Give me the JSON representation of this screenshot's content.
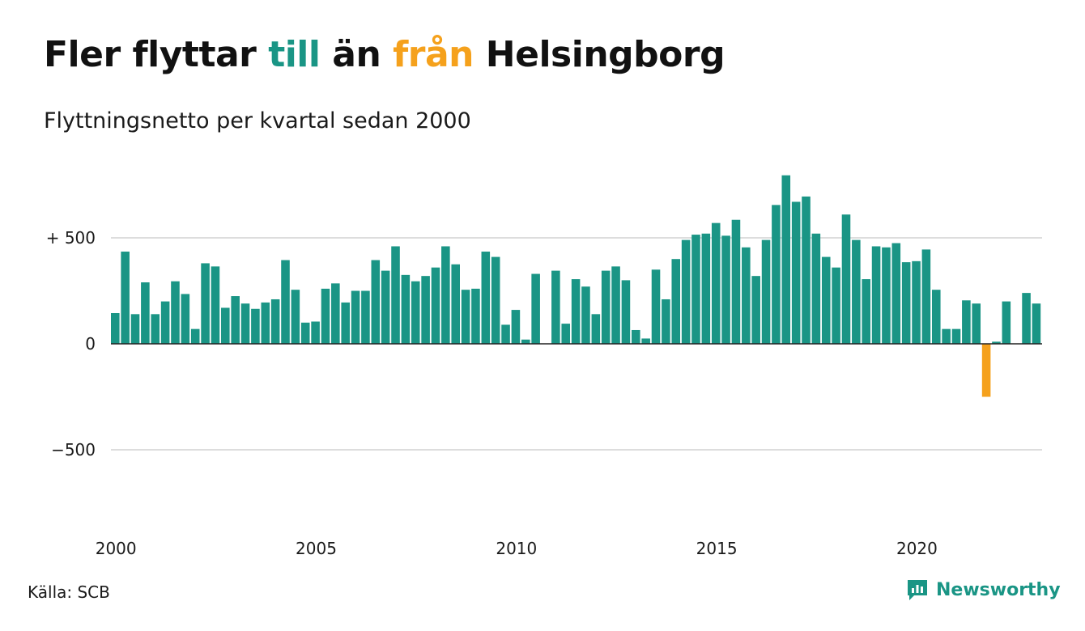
{
  "title": {
    "part1": "Fler flyttar ",
    "part2": "till",
    "part3": " än ",
    "part4": "från",
    "part5": " Helsingborg"
  },
  "subtitle": "Flyttningsnetto per kvartal sedan 2000",
  "source": "Källa: SCB",
  "brand": "Newsworthy",
  "colors": {
    "positive": "#1a9585",
    "negative": "#f5a11c",
    "grid": "#dddddd",
    "zero_line": "#222222"
  },
  "chart_data": {
    "type": "bar",
    "title": "Fler flyttar till än från Helsingborg",
    "subtitle": "Flyttningsnetto per kvartal sedan 2000",
    "xlabel": "",
    "ylabel": "",
    "ylim": [
      -850,
      850
    ],
    "grid": true,
    "y_ticks": [
      {
        "value": 500,
        "label": "+ 500"
      },
      {
        "value": 0,
        "label": "0"
      },
      {
        "value": -500,
        "label": "−500"
      }
    ],
    "x_ticks": [
      {
        "year": 2000,
        "label": "2000"
      },
      {
        "year": 2005,
        "label": "2005"
      },
      {
        "year": 2010,
        "label": "2010"
      },
      {
        "year": 2015,
        "label": "2015"
      },
      {
        "year": 2020,
        "label": "2020"
      }
    ],
    "start_year": 2000,
    "start_quarter": 1,
    "values": [
      145,
      435,
      140,
      290,
      140,
      200,
      295,
      235,
      70,
      380,
      365,
      170,
      225,
      190,
      165,
      195,
      210,
      395,
      255,
      100,
      105,
      260,
      285,
      195,
      250,
      250,
      395,
      345,
      460,
      325,
      295,
      320,
      360,
      460,
      375,
      255,
      260,
      435,
      410,
      90,
      160,
      20,
      330,
      0,
      345,
      95,
      305,
      270,
      140,
      345,
      365,
      300,
      65,
      25,
      350,
      210,
      400,
      490,
      515,
      520,
      570,
      510,
      585,
      455,
      320,
      490,
      655,
      795,
      670,
      695,
      520,
      410,
      360,
      610,
      490,
      305,
      460,
      455,
      475,
      385,
      390,
      445,
      255,
      70,
      70,
      205,
      190,
      -250,
      10,
      200,
      0,
      240,
      190
    ]
  }
}
